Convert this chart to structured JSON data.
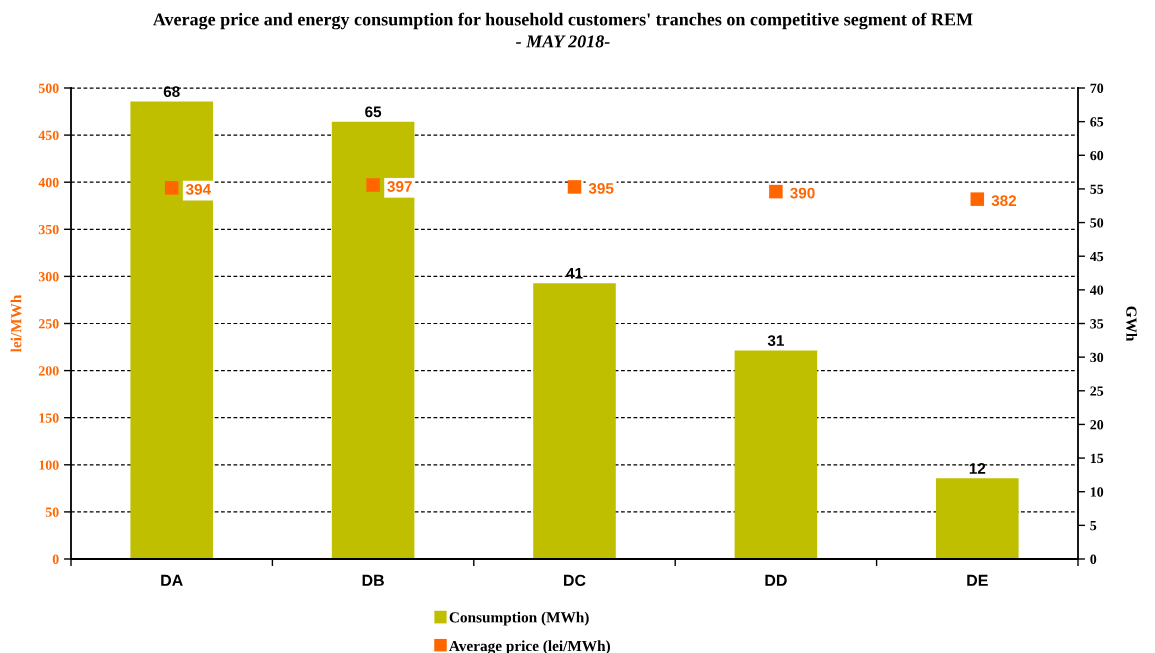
{
  "chart_data": {
    "type": "bar",
    "title": "Average price and energy consumption for household customers' tranches on competitive segment of REM",
    "subtitle": "- MAY 2018-",
    "ylabel": "lei/MWh",
    "y2label": "GWh",
    "categories": [
      "DA",
      "DB",
      "DC",
      "DD",
      "DE"
    ],
    "series": [
      {
        "name": "Consumption (MWh)",
        "axis": "y2",
        "color": "#bfbf00",
        "values": [
          68,
          65,
          41,
          31,
          12
        ]
      },
      {
        "name": "Average price (lei/MWh)",
        "type": "scatter",
        "axis": "y",
        "color": "#ff6600",
        "marker": "square",
        "values": [
          394,
          397,
          395,
          390,
          382
        ]
      }
    ],
    "ylim": [
      0,
      500
    ],
    "yticks": [
      0,
      50,
      100,
      150,
      200,
      250,
      300,
      350,
      400,
      450,
      500
    ],
    "y2lim": [
      0,
      70
    ],
    "y2ticks": [
      0,
      5,
      10,
      15,
      20,
      25,
      30,
      35,
      40,
      45,
      50,
      55,
      60,
      65,
      70
    ],
    "grid": "y",
    "legend": "bottom",
    "data_labels": true
  }
}
